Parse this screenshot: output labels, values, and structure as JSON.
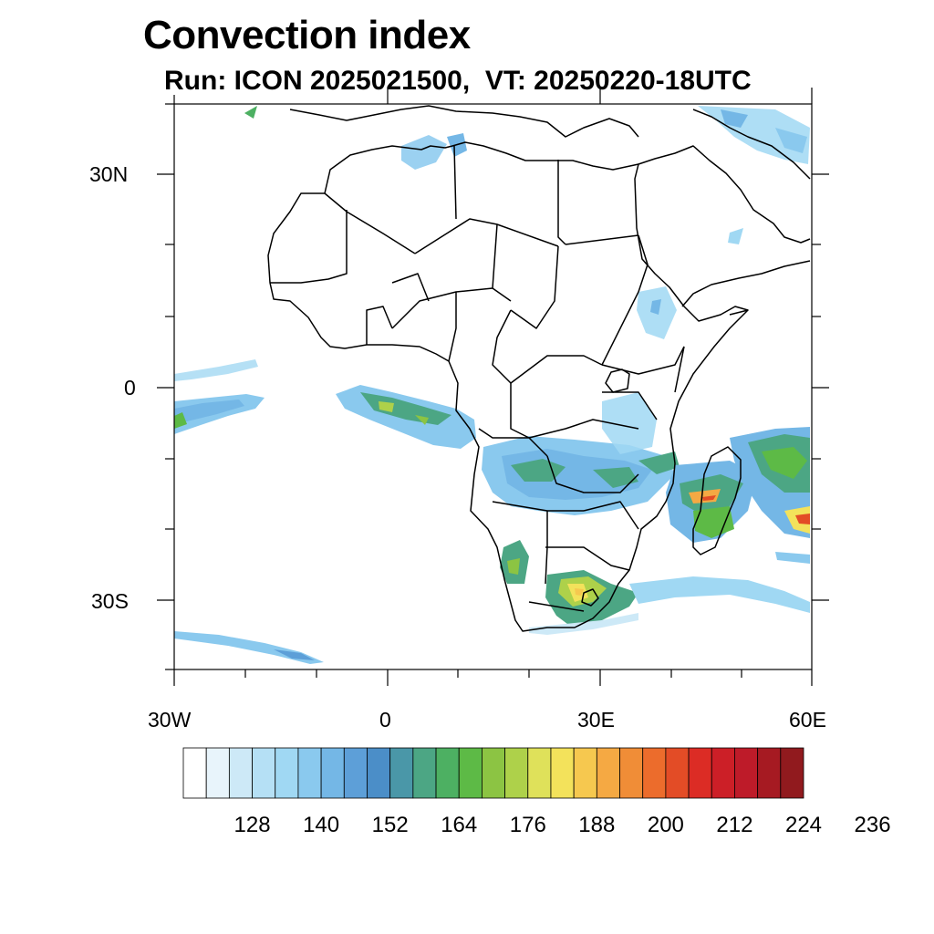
{
  "title": "Convection index",
  "subtitle": "Run: ICON 2025021500,  VT: 20250220-18UTC",
  "latitude_labels": [
    "30N",
    "0",
    "30S"
  ],
  "longitude_labels": [
    "30W",
    "0",
    "30E",
    "60E"
  ],
  "colorbar": {
    "colors": [
      "#ffffff",
      "#e8f4fb",
      "#cde9f7",
      "#b5e0f5",
      "#a0d8f3",
      "#8ac9ee",
      "#74b7e6",
      "#5d9fd8",
      "#4b8ec8",
      "#4a97a8",
      "#4ca684",
      "#4db062",
      "#5dba46",
      "#8cc443",
      "#aed14a",
      "#dfe15a",
      "#f3e25b",
      "#f6c84f",
      "#f5a943",
      "#f08d37",
      "#ec6c2c",
      "#e34c26",
      "#dc2c25",
      "#cc1f27",
      "#be1b29",
      "#a61a22",
      "#911a1e"
    ],
    "tick_labels": [
      "128",
      "140",
      "152",
      "164",
      "176",
      "188",
      "200",
      "212",
      "224",
      "236"
    ]
  }
}
